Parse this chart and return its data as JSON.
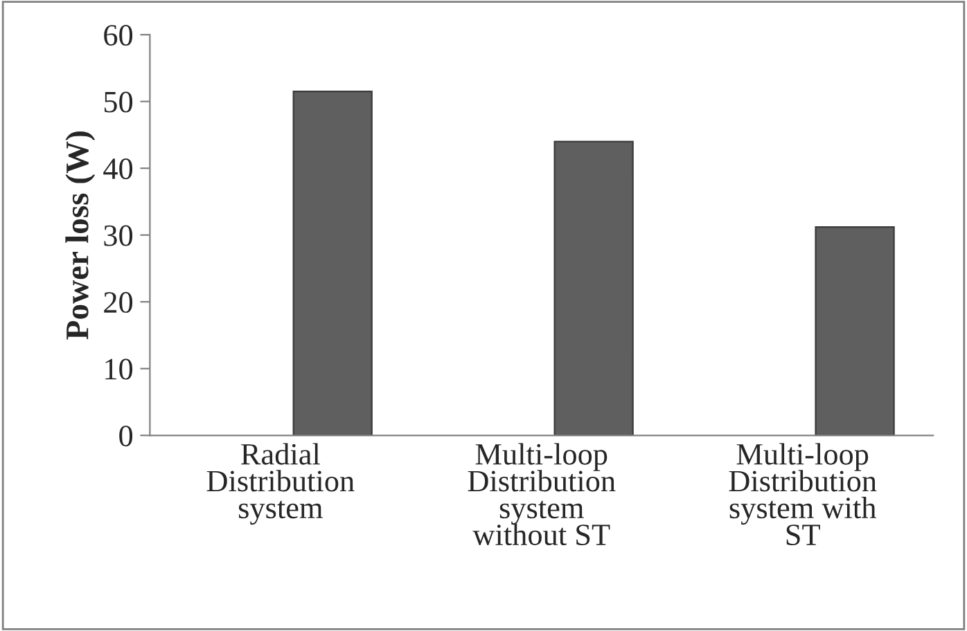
{
  "chart_data": {
    "type": "bar",
    "ylabel": "Power loss (W)",
    "categories": [
      "Radial\nDistribution\nsystem",
      "Multi-loop\nDistribution\nsystem\nwithout ST",
      "Multi-loop\nDistribution\nsystem with\nST"
    ],
    "values": [
      51.5,
      44,
      31.2
    ],
    "color": "#5f5f5f",
    "ylim": [
      0,
      60
    ],
    "yticks": [
      0,
      10,
      20,
      30,
      40,
      50,
      60
    ],
    "grid": false
  }
}
